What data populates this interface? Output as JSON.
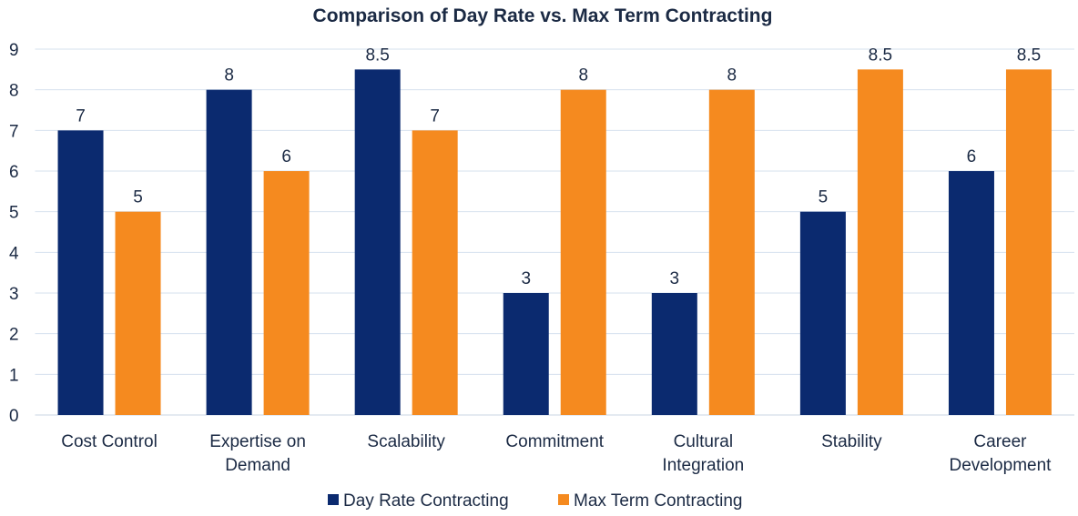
{
  "chart_data": {
    "type": "bar",
    "title": "Comparison of Day Rate vs. Max Term Contracting",
    "categories": [
      [
        "Cost Control"
      ],
      [
        "Expertise on",
        "Demand"
      ],
      [
        "Scalability"
      ],
      [
        "Commitment"
      ],
      [
        "Cultural",
        "Integration"
      ],
      [
        "Stability"
      ],
      [
        "Career",
        "Development"
      ]
    ],
    "series": [
      {
        "name": "Day Rate Contracting",
        "color": "#0b2a6f",
        "values": [
          7,
          8,
          8.5,
          3,
          3,
          5,
          6
        ]
      },
      {
        "name": "Max Term Contracting",
        "color": "#f58a1f",
        "values": [
          5,
          6,
          7,
          8,
          8,
          8.5,
          8.5
        ]
      }
    ],
    "ylim": [
      0,
      9
    ],
    "yticks": [
      0,
      1,
      2,
      3,
      4,
      5,
      6,
      7,
      8,
      9
    ],
    "grid": true,
    "data_labels": true,
    "legend": "bottom"
  }
}
